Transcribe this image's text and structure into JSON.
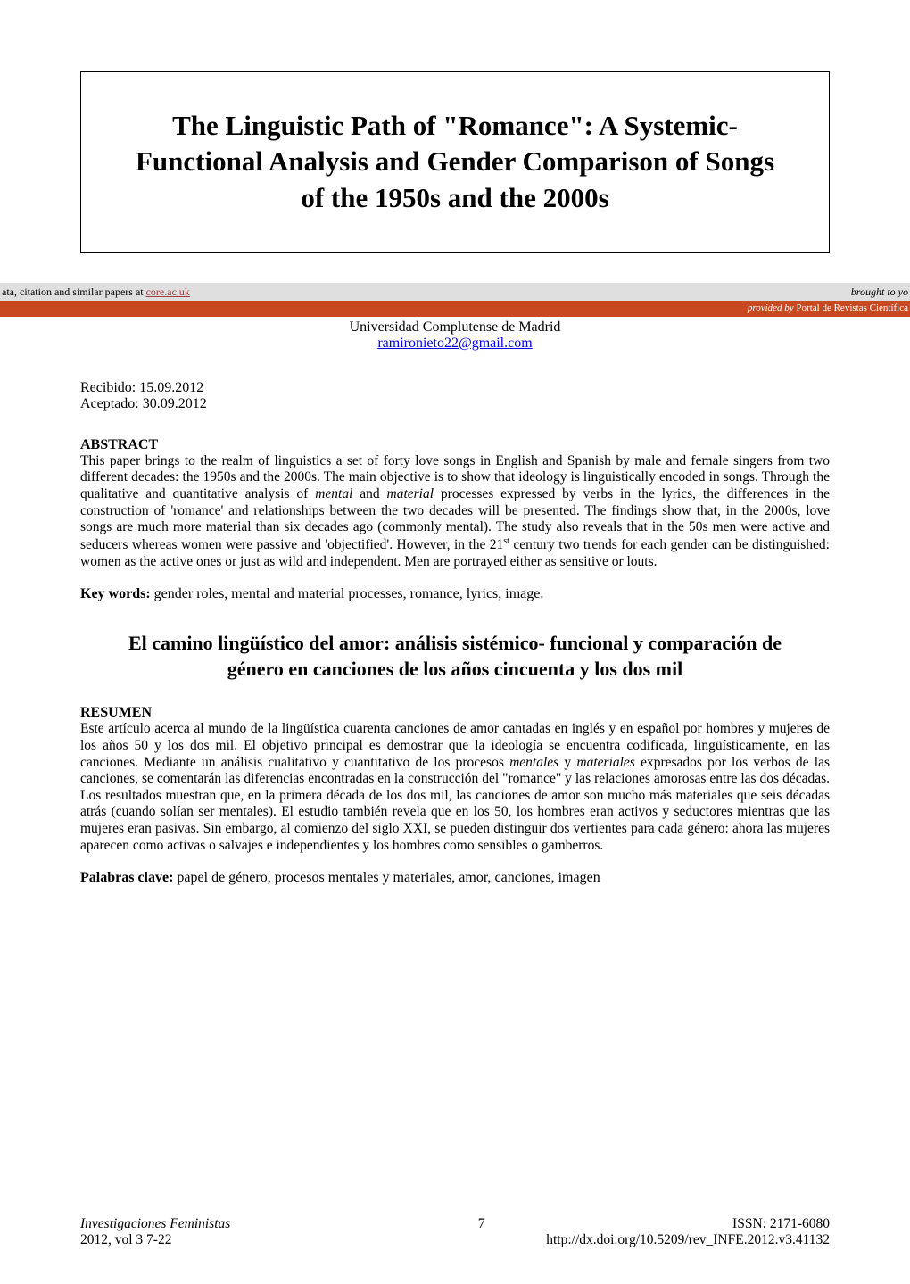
{
  "title": "The Linguistic Path of \"Romance\": A Systemic-Functional Analysis and Gender Comparison of Songs of the 1950s and the 2000s",
  "core_banner": {
    "left_text_prefix": "ata, citation and similar papers at ",
    "core_link": "core.ac.uk",
    "right_text": "brought to yo",
    "bottom_prefix": "provided by ",
    "bottom_portal": "Portal de Revistas Científica"
  },
  "author": {
    "university": "Universidad Complutense de Madrid",
    "email": "ramironieto22@gmail.com"
  },
  "dates": {
    "received": "Recibido: 15.09.2012",
    "accepted": "Aceptado: 30.09.2012"
  },
  "abstract": {
    "heading": "ABSTRACT",
    "body_part1": "This paper brings to the realm of linguistics a set of forty love songs in English and Spanish by male and female singers from two different decades: the 1950s and the 2000s. The main objective is to show that ideology is linguistically encoded in songs. Through the qualitative and quantitative analysis of ",
    "body_italic1": "mental",
    "body_part2": " and ",
    "body_italic2": "material",
    "body_part3": " processes expressed by verbs in the lyrics, the differences in the construction of 'romance' and relationships between the two decades will be presented. The findings show that, in the 2000s, love songs are much more material than six decades ago (commonly mental). The study also reveals that in the 50s men were active and seducers whereas women were passive and 'objectified'. However, in the 21",
    "body_sup": "st",
    "body_part4": " century two trends for each gender can be distinguished: women as the active ones or just as wild and independent. Men are portrayed either as sensitive or louts.",
    "keywords_label": "Key words: ",
    "keywords_text": "gender roles, mental and material processes, romance, lyrics, image."
  },
  "spanish_title": "El camino lingüístico del amor: análisis sistémico- funcional y comparación de género en canciones de los años cincuenta y los dos mil",
  "resumen": {
    "heading": "RESUMEN",
    "body_part1": "Este artículo acerca al mundo de la lingüística cuarenta canciones de amor cantadas en inglés y en español por hombres y mujeres de los años 50 y los dos mil. El objetivo principal es demostrar que la ideología se encuentra codificada, lingüísticamente, en las canciones. Mediante un análisis cualitativo y cuantitativo de los procesos ",
    "body_italic1": "mentales",
    "body_part2": " y ",
    "body_italic2": "materiales",
    "body_part3": " expresados por los verbos de las canciones, se comentarán las diferencias encontradas en la construcción del \"romance\" y las relaciones amorosas entre las dos décadas. Los resultados muestran que, en la primera década de los dos mil, las canciones de amor son mucho más materiales que seis décadas atrás (cuando solían ser mentales). El estudio también revela que en los 50, los hombres eran activos y seductores mientras que las mujeres eran pasivas. Sin embargo, al comienzo del siglo XXI, se pueden distinguir dos vertientes para cada género: ahora las mujeres aparecen como activas o salvajes e independientes y los hombres como sensibles o gamberros.",
    "palabras_label": "Palabras clave: ",
    "palabras_text": "papel de género, procesos mentales y materiales, amor, canciones, imagen"
  },
  "footer": {
    "journal": "Investigaciones Feministas",
    "page_number": "7",
    "issn": "ISSN: 2171-6080",
    "volume": "2012, vol 3  7-22",
    "doi": "http://dx.doi.org/10.5209/rev_INFE.2012.v3.41132"
  },
  "colors": {
    "background": "#ffffff",
    "text": "#000000",
    "link": "#0000ee",
    "core_link": "#a04040",
    "banner_gray": "#dfdfdf",
    "banner_orange": "#c84820",
    "banner_text": "#ffffff"
  },
  "typography": {
    "title_fontsize": 31,
    "body_fontsize": 15.5,
    "spanish_title_fontsize": 22,
    "footer_fontsize": 15.5,
    "font_family": "Times New Roman"
  }
}
